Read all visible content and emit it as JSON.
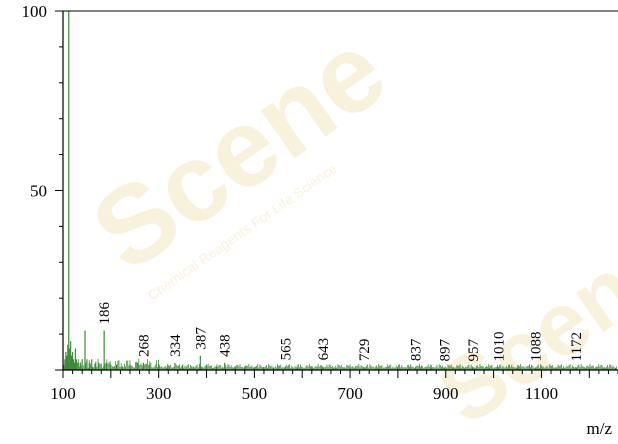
{
  "chart_data": {
    "type": "bar",
    "title": "",
    "xlabel": "m/z",
    "ylabel": "",
    "xlim": [
      100,
      1260
    ],
    "ylim": [
      0,
      100
    ],
    "x_ticks": [
      100,
      300,
      500,
      700,
      900,
      1100
    ],
    "y_ticks": [
      50,
      100
    ],
    "grid": false,
    "colors": {
      "peaks": "#3f8a3a",
      "axis": "#000000",
      "background": "#ffffff",
      "watermark": "#f3e6c0"
    },
    "series": [
      {
        "x": [
          104,
          106,
          108,
          110,
          112,
          114,
          116,
          118,
          120,
          122,
          124,
          126,
          128,
          132,
          136,
          140,
          146,
          150,
          155,
          160,
          168,
          175,
          186,
          190,
          200,
          212,
          224,
          240,
          256,
          268,
          280,
          300,
          318,
          334,
          350,
          372,
          387,
          400,
          420,
          438,
          460,
          480,
          500,
          520,
          540,
          565,
          590,
          620,
          643,
          670,
          700,
          729,
          760,
          800,
          837,
          870,
          897,
          930,
          957,
          990,
          1010,
          1050,
          1088,
          1130,
          1172,
          1200,
          1230,
          1255
        ],
        "values": [
          3,
          5,
          4,
          7,
          100,
          6,
          8,
          4,
          5,
          3,
          2,
          6,
          3,
          2,
          2,
          3,
          11,
          3,
          2,
          3,
          2,
          2,
          11,
          2,
          1.5,
          1.5,
          1,
          1.5,
          2,
          2,
          1.5,
          1.5,
          1,
          2,
          1.5,
          1,
          4,
          1.5,
          1,
          2,
          1,
          1,
          0.8,
          0.8,
          0.6,
          1,
          0.6,
          0.6,
          1,
          0.6,
          0.5,
          0.8,
          0.5,
          0.6,
          0.8,
          0.5,
          0.7,
          0.5,
          0.7,
          0.5,
          0.7,
          0.5,
          0.7,
          0.5,
          0.7,
          0.5,
          0.5,
          0.5
        ]
      }
    ],
    "peak_labels": [
      186,
      268,
      334,
      387,
      438,
      565,
      643,
      729,
      837,
      897,
      957,
      1010,
      1088,
      1172
    ],
    "watermark": {
      "brand": "Scene",
      "tagline": "Chemical Reagents For Life Science"
    }
  }
}
